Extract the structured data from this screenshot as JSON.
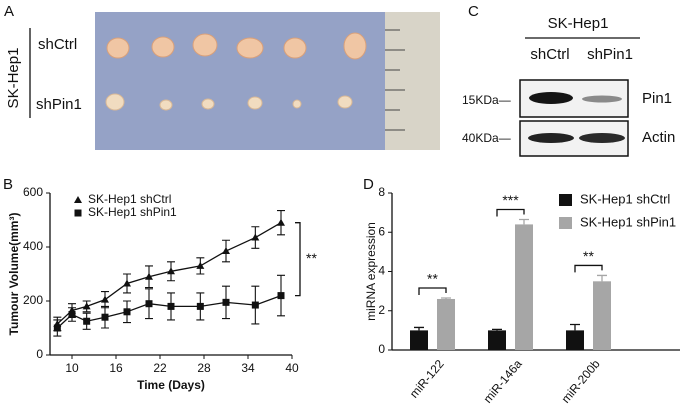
{
  "panel_a": {
    "label": "A",
    "cell_line": "SK-Hep1",
    "rows": [
      "shCtrl",
      "shPin1"
    ]
  },
  "panel_c": {
    "label": "C",
    "cell_line": "SK-Hep1",
    "lanes": [
      "shCtrl",
      "shPin1"
    ],
    "markers": [
      "15KDa—",
      "40KDa—"
    ],
    "proteins": [
      "Pin1",
      "Actin"
    ]
  },
  "chart_data": [
    {
      "type": "line",
      "panel_label": "B",
      "xlabel": "Time (Days)",
      "ylabel": "Tumour Volume(mm³)",
      "x": [
        8,
        10,
        12,
        14.5,
        17.5,
        20.5,
        23.5,
        27.5,
        31,
        35,
        38.5
      ],
      "xlim": [
        7,
        40
      ],
      "xticks": [
        10,
        16,
        22,
        28,
        34,
        40
      ],
      "ylim": [
        0,
        600
      ],
      "yticks": [
        0,
        200,
        400,
        600
      ],
      "significance": "**",
      "series": [
        {
          "name": "SK-Hep1 shCtrl",
          "marker": "triangle",
          "color": "#111111",
          "values": [
            115,
            165,
            180,
            205,
            265,
            290,
            310,
            330,
            385,
            435,
            490
          ],
          "errors": [
            25,
            25,
            20,
            30,
            35,
            40,
            35,
            30,
            40,
            40,
            45
          ]
        },
        {
          "name": "SK-Hep1 shPin1",
          "marker": "square",
          "color": "#111111",
          "values": [
            100,
            150,
            125,
            140,
            160,
            190,
            180,
            180,
            195,
            185,
            220
          ],
          "errors": [
            30,
            25,
            30,
            40,
            40,
            55,
            50,
            50,
            60,
            70,
            75
          ]
        }
      ]
    },
    {
      "type": "bar",
      "panel_label": "D",
      "ylabel": "miRNA expression",
      "categories": [
        "miR-122",
        "miR-146a",
        "miR-200b"
      ],
      "ylim": [
        0,
        8
      ],
      "yticks": [
        0,
        2,
        4,
        6,
        8
      ],
      "significance": [
        "**",
        "***",
        "**"
      ],
      "series": [
        {
          "name": "SK-Hep1 shCtrl",
          "color": "#111111",
          "values": [
            1.0,
            1.0,
            1.0
          ],
          "errors": [
            0.15,
            0.05,
            0.3
          ]
        },
        {
          "name": "SK-Hep1 shPin1",
          "color": "#a6a6a6",
          "values": [
            2.6,
            6.4,
            3.5
          ],
          "errors": [
            0.05,
            0.25,
            0.3
          ]
        }
      ]
    }
  ]
}
